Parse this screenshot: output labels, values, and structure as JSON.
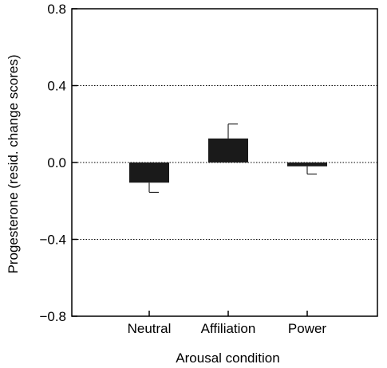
{
  "chart_data": {
    "type": "bar",
    "categories": [
      "Neutral",
      "Affiliation",
      "Power"
    ],
    "values": [
      -0.105,
      0.125,
      -0.02
    ],
    "errors": [
      0.05,
      0.075,
      0.04
    ],
    "xlabel": "Arousal condition",
    "ylabel": "Progesterone (resid. change scores)",
    "ylim": [
      -0.8,
      0.8
    ],
    "yticks": [
      -0.8,
      -0.4,
      0.0,
      0.4,
      0.8
    ],
    "ytick_labels": [
      "−0.8",
      "−0.4",
      "0.0",
      "0.4",
      "0.8"
    ],
    "gridlines": [
      -0.4,
      0.0,
      0.4
    ],
    "grid_style": "dotted horizontal",
    "bar_color": "#1a1a1a"
  }
}
